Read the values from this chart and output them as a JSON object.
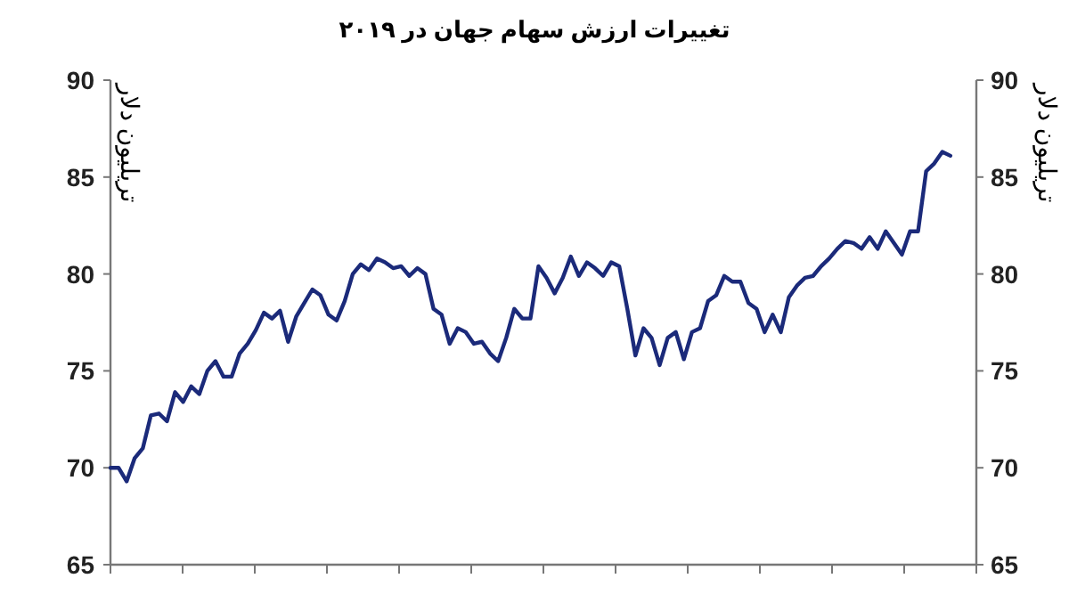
{
  "chart_data": {
    "type": "line",
    "title": "تغییرات ارزش سهام جهان در ۲۰۱۹",
    "ylabel": "تریلیون دلار",
    "y2label": "تریلیون دلار",
    "categories": [
      null,
      null,
      null,
      null,
      null,
      null,
      null,
      null,
      null,
      null,
      null,
      null,
      null,
      null,
      null,
      null,
      null,
      null,
      null,
      null,
      null,
      null,
      null,
      null,
      null,
      null,
      null,
      null,
      null,
      null,
      null,
      null,
      null,
      null,
      null,
      null,
      null,
      null,
      null,
      null,
      null,
      null,
      null,
      null,
      null,
      null,
      null,
      null,
      null,
      null,
      null,
      null,
      null,
      null,
      null,
      null,
      null,
      null,
      null,
      null,
      null,
      null,
      null,
      null,
      null,
      null,
      null,
      null,
      null,
      null,
      null,
      null,
      null,
      null,
      null,
      null,
      null,
      null,
      null,
      null,
      null,
      null,
      null,
      null,
      null,
      null,
      null,
      null,
      null,
      null,
      null,
      null,
      null,
      null,
      null,
      null,
      null,
      null,
      null,
      null,
      null,
      null,
      null,
      null,
      null
    ],
    "series": [
      {
        "color": "#1b2a7a",
        "values": [
          70.0,
          70.0,
          69.3,
          70.5,
          71.0,
          72.7,
          72.8,
          72.4,
          73.9,
          73.4,
          74.2,
          73.8,
          75.0,
          75.5,
          74.7,
          74.7,
          75.9,
          76.4,
          77.1,
          78.0,
          77.7,
          78.1,
          76.5,
          77.8,
          78.5,
          79.2,
          78.9,
          77.9,
          77.6,
          78.6,
          80.0,
          80.5,
          80.2,
          80.8,
          80.6,
          80.3,
          80.4,
          79.9,
          80.3,
          80.0,
          78.2,
          77.9,
          76.4,
          77.2,
          77.0,
          76.4,
          76.5,
          75.9,
          75.5,
          76.7,
          78.2,
          77.7,
          77.7,
          80.4,
          79.8,
          79.0,
          79.8,
          80.9,
          79.9,
          80.6,
          80.3,
          79.9,
          80.6,
          80.4,
          78.2,
          75.8,
          77.2,
          76.7,
          75.3,
          76.7,
          77.0,
          75.6,
          77.0,
          77.2,
          78.6,
          78.9,
          79.9,
          79.6,
          79.6,
          78.5,
          78.2,
          77.0,
          77.9,
          77.0,
          78.8,
          79.4,
          79.8,
          79.9,
          80.4,
          80.8,
          81.3,
          81.7,
          81.6,
          81.3,
          81.9,
          81.3,
          82.2,
          81.6,
          81.0,
          82.2,
          82.2,
          85.3,
          85.7,
          86.3,
          86.1
        ]
      }
    ],
    "ylim": [
      65,
      90
    ],
    "yticks": [
      65,
      70,
      75,
      80,
      85,
      90
    ],
    "y2lim": [
      65,
      90
    ],
    "y2ticks": [
      65,
      70,
      75,
      80,
      85,
      90
    ]
  }
}
